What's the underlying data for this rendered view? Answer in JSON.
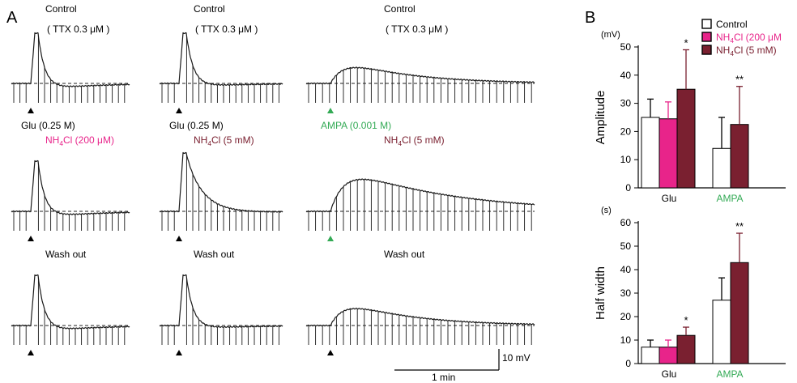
{
  "panel_a": {
    "letter": "A",
    "rows": [
      {
        "traces": [
          {
            "label": "Control",
            "sublabel": "( TTX 0.3 μM )",
            "stim": "Glu (0.25 M)",
            "label_color": "#000000",
            "stim_color": "#000000",
            "arrow_color": "#000000",
            "kind": "glu",
            "peak": 62,
            "decay": 9,
            "under": 0.35
          },
          {
            "label": "Control",
            "sublabel": "( TTX 0.3 μM )",
            "stim": "Glu (0.25 M)",
            "label_color": "#000000",
            "stim_color": "#000000",
            "arrow_color": "#000000",
            "kind": "glu",
            "peak": 62,
            "decay": 9,
            "under": 0.2
          },
          {
            "label": "Control",
            "sublabel": "( TTX 0.3 μM )",
            "stim": "AMPA (0.001 M)",
            "label_color": "#000000",
            "stim_color": "#33aa55",
            "arrow_color": "#33aa55",
            "kind": "ampa",
            "peak": 28,
            "decay": 1,
            "under": 0
          }
        ]
      },
      {
        "traces": [
          {
            "label_main": "NH",
            "label_sub": "4",
            "label_rest": "Cl (200 μM)",
            "label_color": "#e8248a",
            "arrow_color": "#000000",
            "kind": "glu",
            "peak": 62,
            "decay": 9,
            "under": 0.35
          },
          {
            "label_main": "NH",
            "label_sub": "4",
            "label_rest": "Cl (5 mM)",
            "label_color": "#7a2030",
            "arrow_color": "#000000",
            "kind": "glu",
            "peak": 72,
            "decay": 22,
            "under": 0.25
          },
          {
            "label_main": "NH",
            "label_sub": "4",
            "label_rest": "Cl (5 mM)",
            "label_color": "#7a2030",
            "arrow_color": "#33aa55",
            "kind": "ampa",
            "peak": 48,
            "decay": 1.6,
            "under": 0
          }
        ]
      },
      {
        "traces": [
          {
            "label": "Wash out",
            "label_color": "#000000",
            "arrow_color": "#000000",
            "kind": "glu",
            "peak": 62,
            "decay": 9,
            "under": 0.35
          },
          {
            "label": "Wash out",
            "label_color": "#000000",
            "arrow_color": "#000000",
            "kind": "glu",
            "peak": 62,
            "decay": 9,
            "under": 0.2
          },
          {
            "label": "Wash out",
            "label_color": "#000000",
            "arrow_color": "#000000",
            "kind": "ampa",
            "peak": 30,
            "decay": 1,
            "under": 0
          }
        ]
      }
    ],
    "scalebar": {
      "time": "1 min",
      "voltage": "10 mV"
    }
  },
  "chart_data": [
    {
      "type": "bar",
      "panel": "B",
      "ylabel": "Amplitude",
      "unit": "(mV)",
      "ylim": [
        0,
        50
      ],
      "yticks": [
        0,
        10,
        20,
        30,
        40,
        50
      ],
      "categories": [
        "Glu",
        "AMPA"
      ],
      "category_colors": [
        "#000000",
        "#33aa55"
      ],
      "series": [
        {
          "name": "Control",
          "color": "#ffffff",
          "values": [
            25,
            14
          ],
          "errors": [
            6.5,
            11
          ],
          "sig": [
            "",
            ""
          ]
        },
        {
          "name": "NH4Cl (200 μM",
          "color": "#e8248a",
          "values": [
            24.5,
            null
          ],
          "errors": [
            6,
            null
          ],
          "sig": [
            "",
            ""
          ]
        },
        {
          "name": "NH4Cl (5 mM)",
          "color": "#7a2030",
          "values": [
            35,
            22.5
          ],
          "errors": [
            14,
            13.5
          ],
          "sig": [
            "*",
            "**"
          ]
        }
      ]
    },
    {
      "type": "bar",
      "ylabel": "Half width",
      "unit": "(s)",
      "ylim": [
        0,
        60
      ],
      "yticks": [
        0,
        10,
        20,
        30,
        40,
        50,
        60
      ],
      "categories": [
        "Glu",
        "AMPA"
      ],
      "category_colors": [
        "#000000",
        "#33aa55"
      ],
      "series": [
        {
          "name": "Control",
          "color": "#ffffff",
          "values": [
            7,
            27
          ],
          "errors": [
            3,
            9.5
          ],
          "sig": [
            "",
            ""
          ]
        },
        {
          "name": "NH4Cl (200 μM",
          "color": "#e8248a",
          "values": [
            7,
            null
          ],
          "errors": [
            3,
            null
          ],
          "sig": [
            "",
            ""
          ]
        },
        {
          "name": "NH4Cl (5 mM)",
          "color": "#7a2030",
          "values": [
            12,
            43
          ],
          "errors": [
            3.5,
            12.5
          ],
          "sig": [
            "*",
            "**"
          ]
        }
      ]
    }
  ],
  "legend": [
    {
      "main": "Control",
      "sub": "",
      "rest": "",
      "color": "#ffffff",
      "text_color": "#000000"
    },
    {
      "main": "NH",
      "sub": "4",
      "rest": "Cl (200 μM",
      "color": "#e8248a",
      "text_color": "#e8248a"
    },
    {
      "main": "NH",
      "sub": "4",
      "rest": "Cl (5 mM)",
      "color": "#7a2030",
      "text_color": "#7a2030"
    }
  ]
}
